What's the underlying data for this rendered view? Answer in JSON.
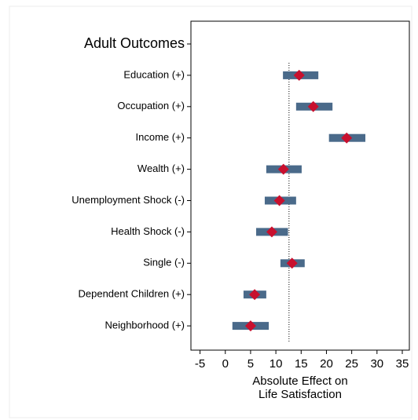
{
  "chart_data": {
    "type": "interval",
    "categories": [
      "Adult Outcomes",
      "Education (+)",
      "Occupation (+)",
      "Income (+)",
      "Wealth (+)",
      "Unemployment Shock (-)",
      "Health Shock (-)",
      "Single (-)",
      "Dependent Children (+)",
      "Neighborhood (+)"
    ],
    "values": [
      null,
      14.6,
      17.4,
      24.0,
      11.5,
      10.7,
      9.2,
      13.2,
      5.8,
      5.0
    ],
    "low": [
      null,
      11.4,
      14.0,
      20.5,
      8.1,
      7.8,
      6.1,
      10.9,
      3.6,
      1.4
    ],
    "high": [
      null,
      18.4,
      21.2,
      27.7,
      15.1,
      14.0,
      12.4,
      15.7,
      8.1,
      8.6
    ],
    "bar_color": "#4a6a8a",
    "marker_color": "#c8102e",
    "ref_line": 12.6,
    "xlabel": [
      "Absolute Effect on",
      "Life Satisfaction"
    ],
    "xlim": [
      -6.8,
      36.4
    ],
    "xticks": [
      -5,
      0,
      5,
      10,
      15,
      20,
      25,
      30,
      35
    ]
  }
}
